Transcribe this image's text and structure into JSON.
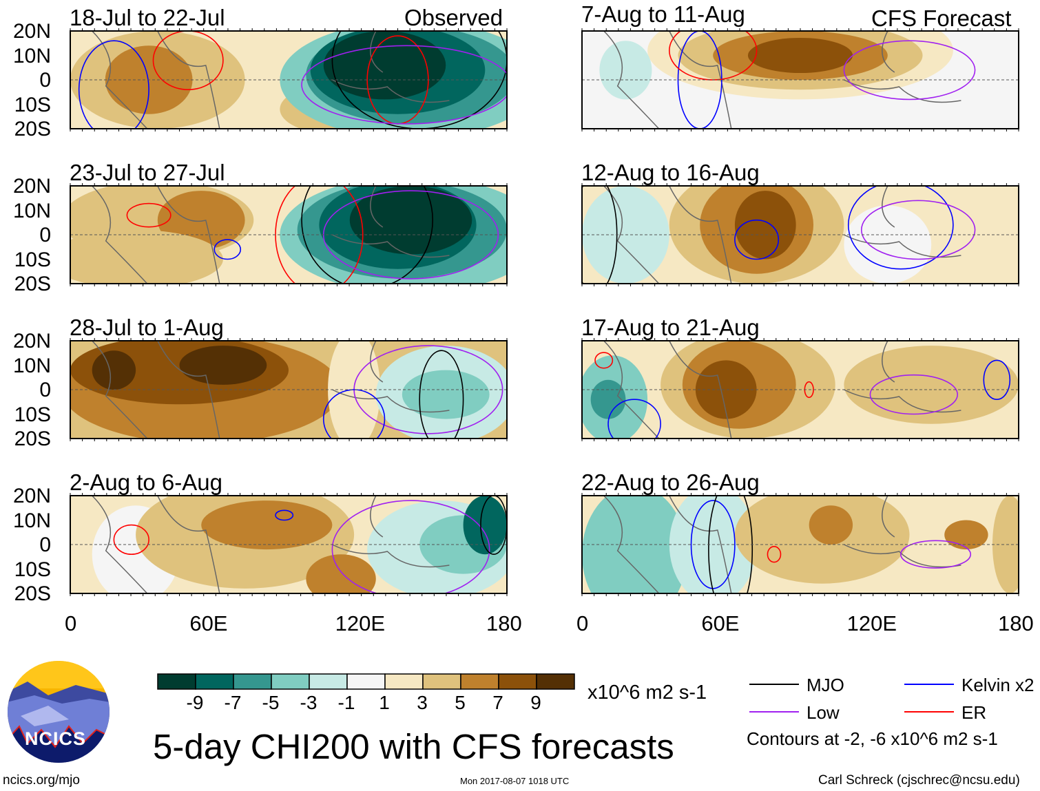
{
  "chart_data": {
    "type": "heatmap",
    "title": "5-day CHI200 with CFS forecasts",
    "variable_units": "x10^6 m2 s-1",
    "colorbar": {
      "levels": [
        "-9",
        "-7",
        "-5",
        "-3",
        "-1",
        "1",
        "3",
        "5",
        "7",
        "9"
      ],
      "colors": [
        "#003c30",
        "#01665e",
        "#35978f",
        "#80cdc1",
        "#c7eae5",
        "#f5f5f5",
        "#f6e8c3",
        "#dfc27d",
        "#bf812d",
        "#8c510a",
        "#543005"
      ]
    },
    "lat_ticks": [
      "20N",
      "10N",
      "0",
      "10S",
      "20S"
    ],
    "lon_ticks": [
      "0",
      "60E",
      "120E",
      "180"
    ],
    "columns": [
      {
        "label": "Observed",
        "panels": [
          "18-Jul to 22-Jul",
          "23-Jul to 27-Jul",
          "28-Jul to 1-Aug",
          "2-Aug to 6-Aug"
        ]
      },
      {
        "label": "CFS Forecast",
        "panels": [
          "7-Aug to 11-Aug",
          "12-Aug to 16-Aug",
          "17-Aug to 21-Aug",
          "22-Aug to 26-Aug"
        ]
      }
    ],
    "legend": {
      "items": [
        {
          "name": "MJO",
          "color": "#000000"
        },
        {
          "name": "Kelvin x2",
          "color": "#0000ff"
        },
        {
          "name": "Low",
          "color": "#a020f0"
        },
        {
          "name": "ER",
          "color": "#ff0000"
        }
      ],
      "note": "Contours at -2, -6 x10^6 m2 s-1"
    }
  },
  "footer": {
    "logo_text": "NCICS",
    "url": "ncics.org/mjo",
    "timestamp": "Mon 2017-08-07 1018 UTC",
    "author": "Carl Schreck (cjschrec@ncsu.edu)"
  }
}
